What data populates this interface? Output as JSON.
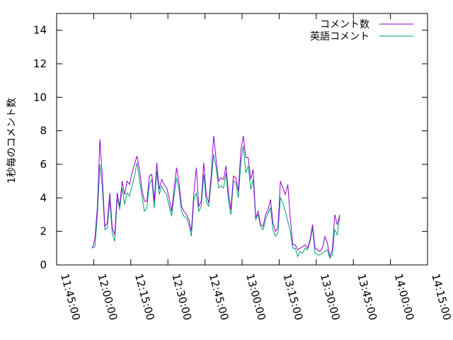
{
  "chart_data": {
    "type": "line",
    "title": "",
    "xlabel": "",
    "ylabel": "1秒毎のコメント数",
    "xlim": [
      "11:45:00",
      "14:15:00"
    ],
    "ylim": [
      0,
      15
    ],
    "xticks": [
      "11:45:00",
      "12:00:00",
      "12:15:00",
      "12:30:00",
      "12:45:00",
      "13:00:00",
      "13:15:00",
      "13:30:00",
      "13:45:00",
      "14:00:00",
      "14:15:00"
    ],
    "yticks": [
      0,
      2,
      4,
      6,
      8,
      10,
      12,
      14
    ],
    "grid": false,
    "legend_position": "top-right",
    "series": [
      {
        "name": "コメント数",
        "color": "#9400d3",
        "points": [
          [
            "11:59:30",
            1.0
          ],
          [
            "12:00:30",
            1.6
          ],
          [
            "12:01:30",
            3.5
          ],
          [
            "12:02:30",
            7.5
          ],
          [
            "12:03:30",
            5.2
          ],
          [
            "12:04:30",
            2.3
          ],
          [
            "12:05:30",
            2.5
          ],
          [
            "12:06:30",
            4.3
          ],
          [
            "12:07:30",
            2.2
          ],
          [
            "12:08:30",
            1.8
          ],
          [
            "12:09:30",
            4.3
          ],
          [
            "12:10:30",
            3.5
          ],
          [
            "12:11:30",
            5.0
          ],
          [
            "12:12:30",
            4.2
          ],
          [
            "12:13:30",
            5.0
          ],
          [
            "12:14:30",
            4.8
          ],
          [
            "12:15:30",
            5.5
          ],
          [
            "12:16:30",
            6.0
          ],
          [
            "12:17:30",
            6.5
          ],
          [
            "12:18:30",
            5.7
          ],
          [
            "12:19:30",
            4.5
          ],
          [
            "12:20:30",
            3.8
          ],
          [
            "12:21:30",
            3.8
          ],
          [
            "12:22:30",
            5.3
          ],
          [
            "12:23:30",
            5.4
          ],
          [
            "12:24:30",
            3.8
          ],
          [
            "12:25:30",
            6.1
          ],
          [
            "12:26:30",
            4.5
          ],
          [
            "12:27:30",
            5.1
          ],
          [
            "12:28:30",
            4.8
          ],
          [
            "12:29:30",
            4.6
          ],
          [
            "12:30:30",
            4.0
          ],
          [
            "12:31:30",
            3.2
          ],
          [
            "12:32:30",
            4.5
          ],
          [
            "12:33:30",
            5.8
          ],
          [
            "12:34:30",
            4.9
          ],
          [
            "12:35:30",
            3.5
          ],
          [
            "12:36:30",
            3.2
          ],
          [
            "12:37:30",
            3.0
          ],
          [
            "12:38:30",
            2.7
          ],
          [
            "12:39:30",
            2.0
          ],
          [
            "12:40:30",
            4.3
          ],
          [
            "12:41:30",
            5.8
          ],
          [
            "12:42:30",
            3.5
          ],
          [
            "12:43:30",
            3.8
          ],
          [
            "12:44:30",
            6.1
          ],
          [
            "12:45:30",
            4.2
          ],
          [
            "12:46:30",
            3.7
          ],
          [
            "12:47:30",
            5.3
          ],
          [
            "12:48:30",
            7.7
          ],
          [
            "12:49:30",
            6.3
          ],
          [
            "12:50:30",
            5.0
          ],
          [
            "12:51:30",
            5.2
          ],
          [
            "12:52:30",
            5.1
          ],
          [
            "12:53:30",
            5.9
          ],
          [
            "12:54:30",
            4.3
          ],
          [
            "12:55:30",
            3.3
          ],
          [
            "12:56:30",
            5.3
          ],
          [
            "12:57:30",
            5.2
          ],
          [
            "12:58:30",
            4.4
          ],
          [
            "12:59:30",
            6.8
          ],
          [
            "13:00:30",
            7.7
          ],
          [
            "13:01:30",
            6.4
          ],
          [
            "13:02:30",
            6.4
          ],
          [
            "13:03:30",
            5.1
          ],
          [
            "13:04:30",
            5.7
          ],
          [
            "13:05:30",
            2.8
          ],
          [
            "13:06:30",
            3.2
          ],
          [
            "13:07:30",
            2.4
          ],
          [
            "13:08:30",
            2.3
          ],
          [
            "13:09:30",
            3.0
          ],
          [
            "13:10:30",
            3.3
          ],
          [
            "13:11:30",
            3.9
          ],
          [
            "13:12:30",
            2.5
          ],
          [
            "13:13:30",
            2.0
          ],
          [
            "13:14:30",
            2.2
          ],
          [
            "13:15:30",
            5.0
          ],
          [
            "13:16:30",
            4.6
          ],
          [
            "13:17:30",
            4.2
          ],
          [
            "13:18:30",
            4.8
          ],
          [
            "13:19:30",
            2.8
          ],
          [
            "13:20:30",
            1.2
          ],
          [
            "13:21:30",
            1.2
          ],
          [
            "13:22:30",
            0.9
          ],
          [
            "13:23:30",
            1.0
          ],
          [
            "13:24:30",
            1.1
          ],
          [
            "13:25:30",
            1.2
          ],
          [
            "13:26:30",
            1.0
          ],
          [
            "13:27:30",
            1.5
          ],
          [
            "13:28:30",
            2.4
          ],
          [
            "13:29:30",
            1.0
          ],
          [
            "13:30:30",
            0.9
          ],
          [
            "13:31:30",
            0.8
          ],
          [
            "13:32:30",
            1.0
          ],
          [
            "13:33:30",
            1.7
          ],
          [
            "13:34:30",
            1.3
          ],
          [
            "13:35:30",
            0.5
          ],
          [
            "13:36:30",
            0.9
          ],
          [
            "13:37:30",
            3.0
          ],
          [
            "13:38:30",
            2.4
          ],
          [
            "13:39:30",
            3.0
          ]
        ]
      },
      {
        "name": "英語コメント",
        "color": "#009e73",
        "points": [
          [
            "11:59:30",
            1.0
          ],
          [
            "12:00:30",
            1.1
          ],
          [
            "12:01:30",
            3.0
          ],
          [
            "12:02:30",
            6.0
          ],
          [
            "12:03:30",
            4.6
          ],
          [
            "12:04:30",
            2.1
          ],
          [
            "12:05:30",
            2.2
          ],
          [
            "12:06:30",
            3.9
          ],
          [
            "12:07:30",
            1.9
          ],
          [
            "12:08:30",
            1.4
          ],
          [
            "12:09:30",
            4.0
          ],
          [
            "12:10:30",
            3.3
          ],
          [
            "12:11:30",
            4.6
          ],
          [
            "12:12:30",
            3.6
          ],
          [
            "12:13:30",
            4.3
          ],
          [
            "12:14:30",
            4.1
          ],
          [
            "12:15:30",
            4.7
          ],
          [
            "12:16:30",
            5.3
          ],
          [
            "12:17:30",
            6.1
          ],
          [
            "12:18:30",
            5.1
          ],
          [
            "12:19:30",
            4.1
          ],
          [
            "12:20:30",
            3.2
          ],
          [
            "12:21:30",
            3.4
          ],
          [
            "12:22:30",
            4.8
          ],
          [
            "12:23:30",
            5.1
          ],
          [
            "12:24:30",
            3.4
          ],
          [
            "12:25:30",
            5.6
          ],
          [
            "12:26:30",
            4.2
          ],
          [
            "12:27:30",
            4.7
          ],
          [
            "12:28:30",
            4.4
          ],
          [
            "12:29:30",
            4.2
          ],
          [
            "12:30:30",
            3.5
          ],
          [
            "12:31:30",
            2.9
          ],
          [
            "12:32:30",
            4.1
          ],
          [
            "12:33:30",
            5.2
          ],
          [
            "12:34:30",
            4.5
          ],
          [
            "12:35:30",
            3.2
          ],
          [
            "12:36:30",
            2.9
          ],
          [
            "12:37:30",
            2.8
          ],
          [
            "12:38:30",
            2.4
          ],
          [
            "12:39:30",
            1.7
          ],
          [
            "12:40:30",
            3.9
          ],
          [
            "12:41:30",
            4.3
          ],
          [
            "12:42:30",
            3.2
          ],
          [
            "12:43:30",
            3.5
          ],
          [
            "12:44:30",
            5.4
          ],
          [
            "12:45:30",
            3.8
          ],
          [
            "12:46:30",
            3.5
          ],
          [
            "12:47:30",
            4.9
          ],
          [
            "12:48:30",
            6.6
          ],
          [
            "12:49:30",
            5.8
          ],
          [
            "12:50:30",
            4.6
          ],
          [
            "12:51:30",
            4.7
          ],
          [
            "12:52:30",
            4.6
          ],
          [
            "12:53:30",
            5.5
          ],
          [
            "12:54:30",
            3.8
          ],
          [
            "12:55:30",
            3.0
          ],
          [
            "12:56:30",
            5.0
          ],
          [
            "12:57:30",
            4.9
          ],
          [
            "12:58:30",
            4.0
          ],
          [
            "12:59:30",
            6.1
          ],
          [
            "13:00:30",
            7.1
          ],
          [
            "13:01:30",
            5.5
          ],
          [
            "13:02:30",
            5.9
          ],
          [
            "13:03:30",
            4.5
          ],
          [
            "13:04:30",
            5.1
          ],
          [
            "13:05:30",
            2.7
          ],
          [
            "13:06:30",
            3.0
          ],
          [
            "13:07:30",
            2.3
          ],
          [
            "13:08:30",
            2.1
          ],
          [
            "13:09:30",
            2.7
          ],
          [
            "13:10:30",
            3.1
          ],
          [
            "13:11:30",
            3.4
          ],
          [
            "13:12:30",
            2.1
          ],
          [
            "13:13:30",
            1.7
          ],
          [
            "13:14:30",
            1.9
          ],
          [
            "13:15:30",
            4.0
          ],
          [
            "13:16:30",
            3.7
          ],
          [
            "13:17:30",
            3.2
          ],
          [
            "13:18:30",
            2.6
          ],
          [
            "13:19:30",
            2.0
          ],
          [
            "13:20:30",
            1.0
          ],
          [
            "13:21:30",
            1.0
          ],
          [
            "13:22:30",
            0.5
          ],
          [
            "13:23:30",
            0.8
          ],
          [
            "13:24:30",
            0.7
          ],
          [
            "13:25:30",
            1.0
          ],
          [
            "13:26:30",
            0.9
          ],
          [
            "13:27:30",
            1.4
          ],
          [
            "13:28:30",
            2.2
          ],
          [
            "13:29:30",
            0.7
          ],
          [
            "13:30:30",
            0.6
          ],
          [
            "13:31:30",
            0.6
          ],
          [
            "13:32:30",
            0.7
          ],
          [
            "13:33:30",
            0.8
          ],
          [
            "13:34:30",
            0.9
          ],
          [
            "13:35:30",
            0.4
          ],
          [
            "13:36:30",
            0.6
          ],
          [
            "13:37:30",
            2.1
          ],
          [
            "13:38:30",
            1.8
          ],
          [
            "13:39:30",
            2.9
          ]
        ]
      }
    ]
  }
}
